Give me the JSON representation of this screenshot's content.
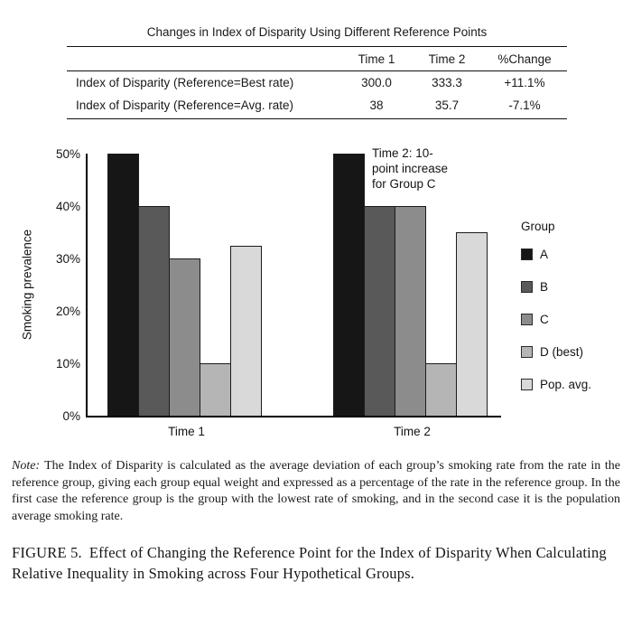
{
  "table": {
    "title": "Changes in Index of Disparity Using Different Reference Points",
    "columns": [
      "",
      "Time 1",
      "Time 2",
      "%Change"
    ],
    "rows": [
      {
        "label": "Index of Disparity (Reference=Best rate)",
        "time1": "300.0",
        "time2": "333.3",
        "pct_change": "+11.1%"
      },
      {
        "label": "Index of Disparity (Reference=Avg. rate)",
        "time1": "38",
        "time2": "35.7",
        "pct_change": "-7.1%"
      }
    ]
  },
  "chart_data": {
    "type": "bar",
    "title": "",
    "categories": [
      "Time 1",
      "Time 2"
    ],
    "series": [
      {
        "name": "A",
        "color": "#161616",
        "values": [
          50,
          50
        ]
      },
      {
        "name": "B",
        "color": "#595959",
        "values": [
          40,
          40
        ]
      },
      {
        "name": "C",
        "color": "#8c8c8c",
        "values": [
          30,
          40
        ]
      },
      {
        "name": "D (best)",
        "color": "#b5b5b5",
        "values": [
          10,
          10
        ]
      },
      {
        "name": "Pop. avg.",
        "color": "#d9d9d9",
        "values": [
          32.5,
          35
        ]
      }
    ],
    "xlabel": "",
    "ylabel": "Smoking prevalence",
    "ylim": [
      0,
      50
    ],
    "yticks": [
      "0%",
      "10%",
      "20%",
      "30%",
      "40%",
      "50%"
    ],
    "grid": false,
    "legend_title": "Group",
    "legend_position": "right",
    "annotation": "Time 2: 10-point increase for Group C"
  },
  "note": {
    "label": "Note:",
    "text": "The Index of Disparity is calculated as the average deviation of each group’s smoking rate from the rate in the reference group, giving each group equal weight and expressed as a percentage of the rate in the reference group. In the first case the reference group is the group with the lowest rate of smoking, and in the second case it is the population average smoking rate."
  },
  "caption": {
    "label": "FIGURE 5.",
    "text": "Effect of Changing the Reference Point for the Index of Disparity When Calculating Relative Inequality in Smoking across Four Hypothetical Groups."
  }
}
